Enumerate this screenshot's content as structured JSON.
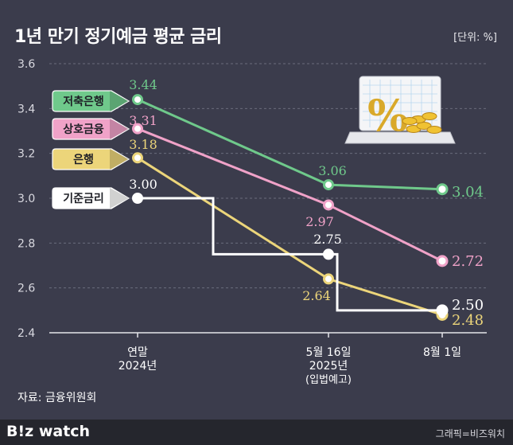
{
  "title": "1년 만기 정기예금 평균 금리",
  "unit": "[단위: %]",
  "source": "자료: 금융위원회",
  "brand": "B!z watch",
  "credit": "그래픽=비즈워치",
  "colors": {
    "background": "#3b3c4c",
    "savings_bank": "#6fc98b",
    "mutual_finance": "#f0a2c8",
    "bank": "#ecd57a",
    "base_rate": "#ffffff"
  },
  "icon": "percent-laptop-coins-icon",
  "chart_data": {
    "type": "line",
    "ylim": [
      2.4,
      3.6
    ],
    "yticks": [
      "2.4",
      "2.6",
      "2.8",
      "3.0",
      "3.2",
      "3.4",
      "3.6"
    ],
    "x_labels": [
      [
        "연말",
        "2024년"
      ],
      [
        "5월 16일",
        "2025년",
        "(입법예고)"
      ],
      [
        "8월 1일"
      ]
    ],
    "series": [
      {
        "name": "저축은행",
        "color": "#6fc98b",
        "values": [
          3.44,
          3.06,
          3.04
        ],
        "labels": [
          "3.44",
          "3.06",
          "3.04"
        ]
      },
      {
        "name": "상호금융",
        "color": "#f0a2c8",
        "values": [
          3.31,
          2.97,
          2.72
        ],
        "labels": [
          "3.31",
          "2.97",
          "2.72"
        ]
      },
      {
        "name": "은행",
        "color": "#ecd57a",
        "values": [
          3.18,
          2.64,
          2.48
        ],
        "labels": [
          "3.18",
          "2.64",
          "2.48"
        ]
      },
      {
        "name": "기준금리",
        "color": "#ffffff",
        "step": true,
        "values": [
          3.0,
          2.75,
          2.5
        ],
        "labels": [
          "3.00",
          "2.75",
          "2.50"
        ]
      }
    ]
  }
}
